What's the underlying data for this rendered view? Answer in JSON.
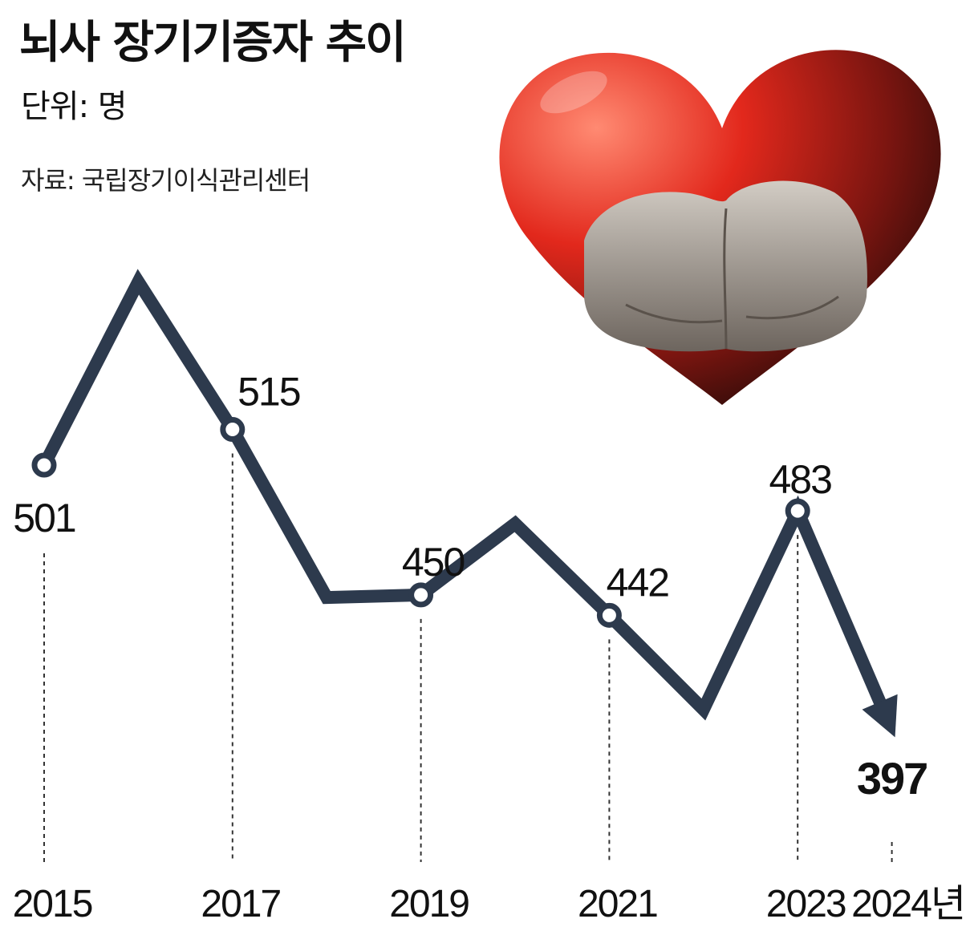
{
  "title": "뇌사 장기기증자 추이",
  "unit": "단위: 명",
  "source": "자료: 국립장기이식관리센터",
  "colors": {
    "line": "#2d3a4d",
    "marker_fill": "#ffffff",
    "heart_light": "#ff6a55",
    "heart_mid": "#d8221a",
    "heart_dark": "#1a0b08",
    "hands": "#b9b2aa"
  },
  "illustration": "heart-with-open-hands",
  "chart_data": {
    "type": "line",
    "x": [
      2015,
      2016,
      2017,
      2018,
      2019,
      2020,
      2021,
      2022,
      2023,
      2024
    ],
    "values": [
      501,
      573,
      515,
      449,
      450,
      478,
      442,
      405,
      483,
      397
    ],
    "tick_labels": [
      "2015",
      "2017",
      "2019",
      "2021",
      "2023",
      "2024년"
    ],
    "labeled_points": [
      {
        "x": 2015,
        "label": "501"
      },
      {
        "x": 2017,
        "label": "515"
      },
      {
        "x": 2019,
        "label": "450"
      },
      {
        "x": 2021,
        "label": "442"
      },
      {
        "x": 2023,
        "label": "483"
      },
      {
        "x": 2024,
        "label": "397"
      }
    ],
    "title": "뇌사 장기기증자 추이",
    "xlabel": "",
    "ylabel": "",
    "grid": false,
    "last_point_arrow": true
  }
}
